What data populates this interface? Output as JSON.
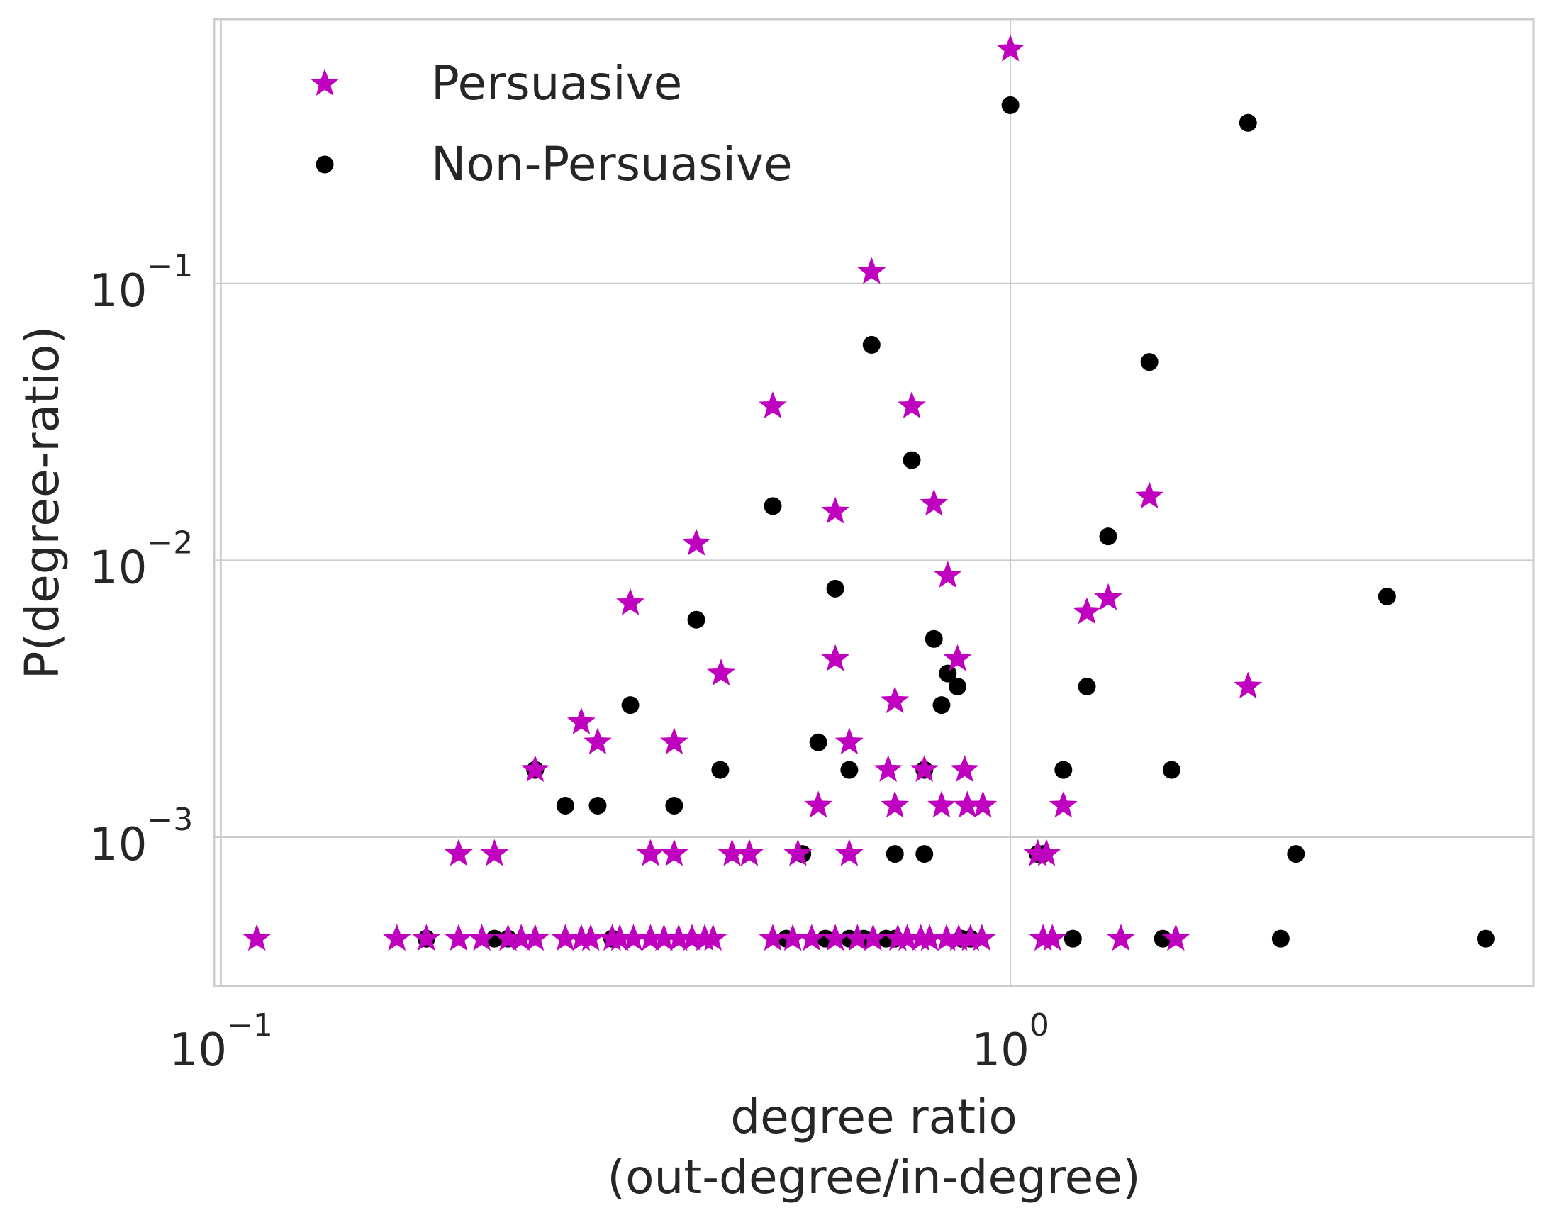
{
  "chart_data": {
    "type": "scatter",
    "xlabel_lines": [
      "degree ratio",
      "(out-degree/in-degree)"
    ],
    "ylabel": "P(degree-ratio)",
    "xscale": "log",
    "yscale": "log",
    "xlim": [
      0.098,
      4.6
    ],
    "ylim": [
      0.00029,
      0.9
    ],
    "x_ticks": [
      {
        "base": "10",
        "exp": "−1",
        "value": 0.1
      },
      {
        "base": "10",
        "exp": "0",
        "value": 1
      }
    ],
    "y_ticks": [
      {
        "base": "10",
        "exp": "−1",
        "value": 0.1
      },
      {
        "base": "10",
        "exp": "−2",
        "value": 0.01
      },
      {
        "base": "10",
        "exp": "−3",
        "value": 0.001
      }
    ],
    "grid": true,
    "legend_position": "upper-left",
    "series": [
      {
        "name": "Persuasive",
        "marker": "star",
        "color": "#bf00bf",
        "points": [
          [
            1.0,
            0.7
          ],
          [
            0.667,
            0.11
          ],
          [
            0.5,
            0.036
          ],
          [
            0.75,
            0.036
          ],
          [
            0.6,
            0.015
          ],
          [
            0.8,
            0.016
          ],
          [
            1.5,
            0.017
          ],
          [
            0.4,
            0.0115
          ],
          [
            0.33,
            0.007
          ],
          [
            0.833,
            0.0088
          ],
          [
            1.33,
            0.0073
          ],
          [
            1.25,
            0.0065
          ],
          [
            0.6,
            0.0044
          ],
          [
            0.43,
            0.0039
          ],
          [
            0.857,
            0.0044
          ],
          [
            2.0,
            0.0035
          ],
          [
            0.286,
            0.0026
          ],
          [
            0.3,
            0.0022
          ],
          [
            0.375,
            0.0022
          ],
          [
            0.625,
            0.0022
          ],
          [
            0.714,
            0.0031
          ],
          [
            0.25,
            0.00175
          ],
          [
            0.7,
            0.00175
          ],
          [
            0.778,
            0.00175
          ],
          [
            0.875,
            0.00175
          ],
          [
            0.571,
            0.0013
          ],
          [
            0.714,
            0.0013
          ],
          [
            0.818,
            0.0013
          ],
          [
            0.882,
            0.0013
          ],
          [
            0.923,
            0.0013
          ],
          [
            1.167,
            0.0013
          ],
          [
            0.2,
            0.00087
          ],
          [
            0.222,
            0.00087
          ],
          [
            0.35,
            0.00087
          ],
          [
            0.375,
            0.00087
          ],
          [
            0.444,
            0.00087
          ],
          [
            0.467,
            0.00087
          ],
          [
            0.538,
            0.00087
          ],
          [
            0.625,
            0.00087
          ],
          [
            1.083,
            0.00087
          ],
          [
            1.111,
            0.00087
          ],
          [
            0.111,
            0.00043
          ],
          [
            0.167,
            0.00043
          ],
          [
            0.182,
            0.00043
          ],
          [
            0.2,
            0.00043
          ],
          [
            0.214,
            0.00043
          ],
          [
            0.231,
            0.00043
          ],
          [
            0.24,
            0.00043
          ],
          [
            0.25,
            0.00043
          ],
          [
            0.273,
            0.00043
          ],
          [
            0.286,
            0.00043
          ],
          [
            0.294,
            0.00043
          ],
          [
            0.313,
            0.00043
          ],
          [
            0.32,
            0.00043
          ],
          [
            0.333,
            0.00043
          ],
          [
            0.35,
            0.00043
          ],
          [
            0.364,
            0.00043
          ],
          [
            0.38,
            0.00043
          ],
          [
            0.395,
            0.00043
          ],
          [
            0.41,
            0.00043
          ],
          [
            0.42,
            0.00043
          ],
          [
            0.5,
            0.00043
          ],
          [
            0.53,
            0.00043
          ],
          [
            0.56,
            0.00043
          ],
          [
            0.6,
            0.00043
          ],
          [
            0.64,
            0.00043
          ],
          [
            0.67,
            0.00043
          ],
          [
            0.72,
            0.00043
          ],
          [
            0.74,
            0.00043
          ],
          [
            0.77,
            0.00043
          ],
          [
            0.79,
            0.00043
          ],
          [
            0.83,
            0.00043
          ],
          [
            0.86,
            0.00043
          ],
          [
            0.89,
            0.00043
          ],
          [
            0.92,
            0.00043
          ],
          [
            1.1,
            0.00043
          ],
          [
            1.13,
            0.00043
          ],
          [
            1.38,
            0.00043
          ],
          [
            1.62,
            0.00043
          ]
        ]
      },
      {
        "name": "Non-Persuasive",
        "marker": "circle",
        "color": "#000000",
        "points": [
          [
            1.0,
            0.44
          ],
          [
            2.0,
            0.38
          ],
          [
            0.667,
            0.06
          ],
          [
            1.5,
            0.052
          ],
          [
            0.75,
            0.023
          ],
          [
            0.5,
            0.0157
          ],
          [
            1.33,
            0.0122
          ],
          [
            0.6,
            0.0079
          ],
          [
            3.0,
            0.0074
          ],
          [
            0.4,
            0.0061
          ],
          [
            0.8,
            0.0052
          ],
          [
            0.833,
            0.0039
          ],
          [
            1.25,
            0.0035
          ],
          [
            0.857,
            0.0035
          ],
          [
            0.33,
            0.003
          ],
          [
            0.818,
            0.003
          ],
          [
            0.571,
            0.0022
          ],
          [
            0.25,
            0.00175
          ],
          [
            0.429,
            0.00175
          ],
          [
            0.625,
            0.00175
          ],
          [
            0.778,
            0.00175
          ],
          [
            1.167,
            0.00175
          ],
          [
            1.6,
            0.00175
          ],
          [
            0.273,
            0.0013
          ],
          [
            0.3,
            0.0013
          ],
          [
            0.375,
            0.0013
          ],
          [
            0.545,
            0.00087
          ],
          [
            0.714,
            0.00087
          ],
          [
            0.778,
            0.00087
          ],
          [
            1.083,
            0.00087
          ],
          [
            1.1,
            0.00087
          ],
          [
            2.3,
            0.00087
          ],
          [
            0.182,
            0.00043
          ],
          [
            0.222,
            0.00043
          ],
          [
            0.231,
            0.00043
          ],
          [
            0.313,
            0.00043
          ],
          [
            0.52,
            0.00043
          ],
          [
            0.583,
            0.00043
          ],
          [
            0.625,
            0.00043
          ],
          [
            0.652,
            0.00043
          ],
          [
            0.696,
            0.00043
          ],
          [
            0.714,
            0.00043
          ],
          [
            0.867,
            0.00043
          ],
          [
            0.89,
            0.00043
          ],
          [
            1.2,
            0.00043
          ],
          [
            1.56,
            0.00043
          ],
          [
            2.2,
            0.00043
          ],
          [
            4.0,
            0.00043
          ]
        ]
      }
    ]
  }
}
